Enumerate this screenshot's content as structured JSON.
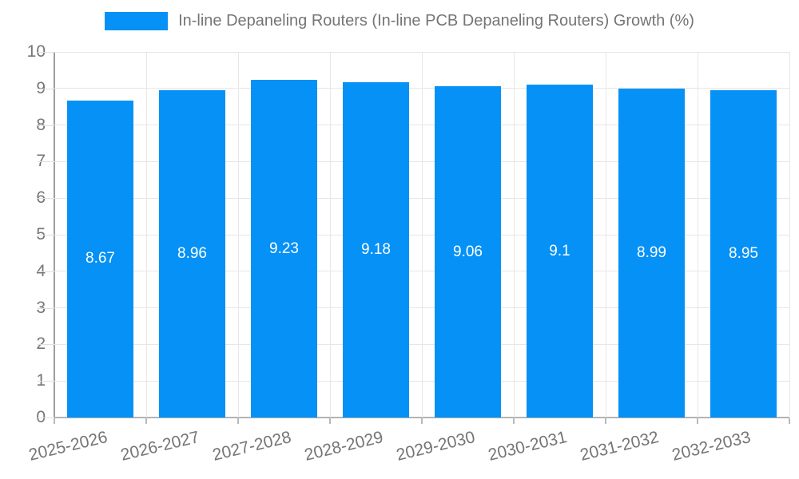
{
  "legend": {
    "label": "In-line Depaneling Routers (In-line PCB Depaneling Routers) Growth (%)"
  },
  "chart_data": {
    "type": "bar",
    "title": "",
    "legend": "In-line Depaneling Routers (In-line PCB Depaneling Routers) Growth (%)",
    "legend_position": "top",
    "categories": [
      "2025-2026",
      "2026-2027",
      "2027-2028",
      "2028-2029",
      "2029-2030",
      "2030-2031",
      "2031-2032",
      "2032-2033"
    ],
    "values": [
      8.67,
      8.96,
      9.23,
      9.18,
      9.06,
      9.1,
      8.99,
      8.95
    ],
    "value_labels": [
      "8.67",
      "8.96",
      "9.23",
      "9.18",
      "9.06",
      "9.1",
      "8.99",
      "8.95"
    ],
    "xlabel": "",
    "ylabel": "",
    "ylim": [
      0,
      10
    ],
    "yticks": [
      0,
      1,
      2,
      3,
      4,
      5,
      6,
      7,
      8,
      9,
      10
    ],
    "grid": true,
    "colors": {
      "bar": "#0591F5",
      "grid": "#e7e7e7",
      "axis": "#9d9d9d",
      "axis_text": "#757575",
      "value_text": "#ffffff",
      "background": "#ffffff"
    }
  }
}
